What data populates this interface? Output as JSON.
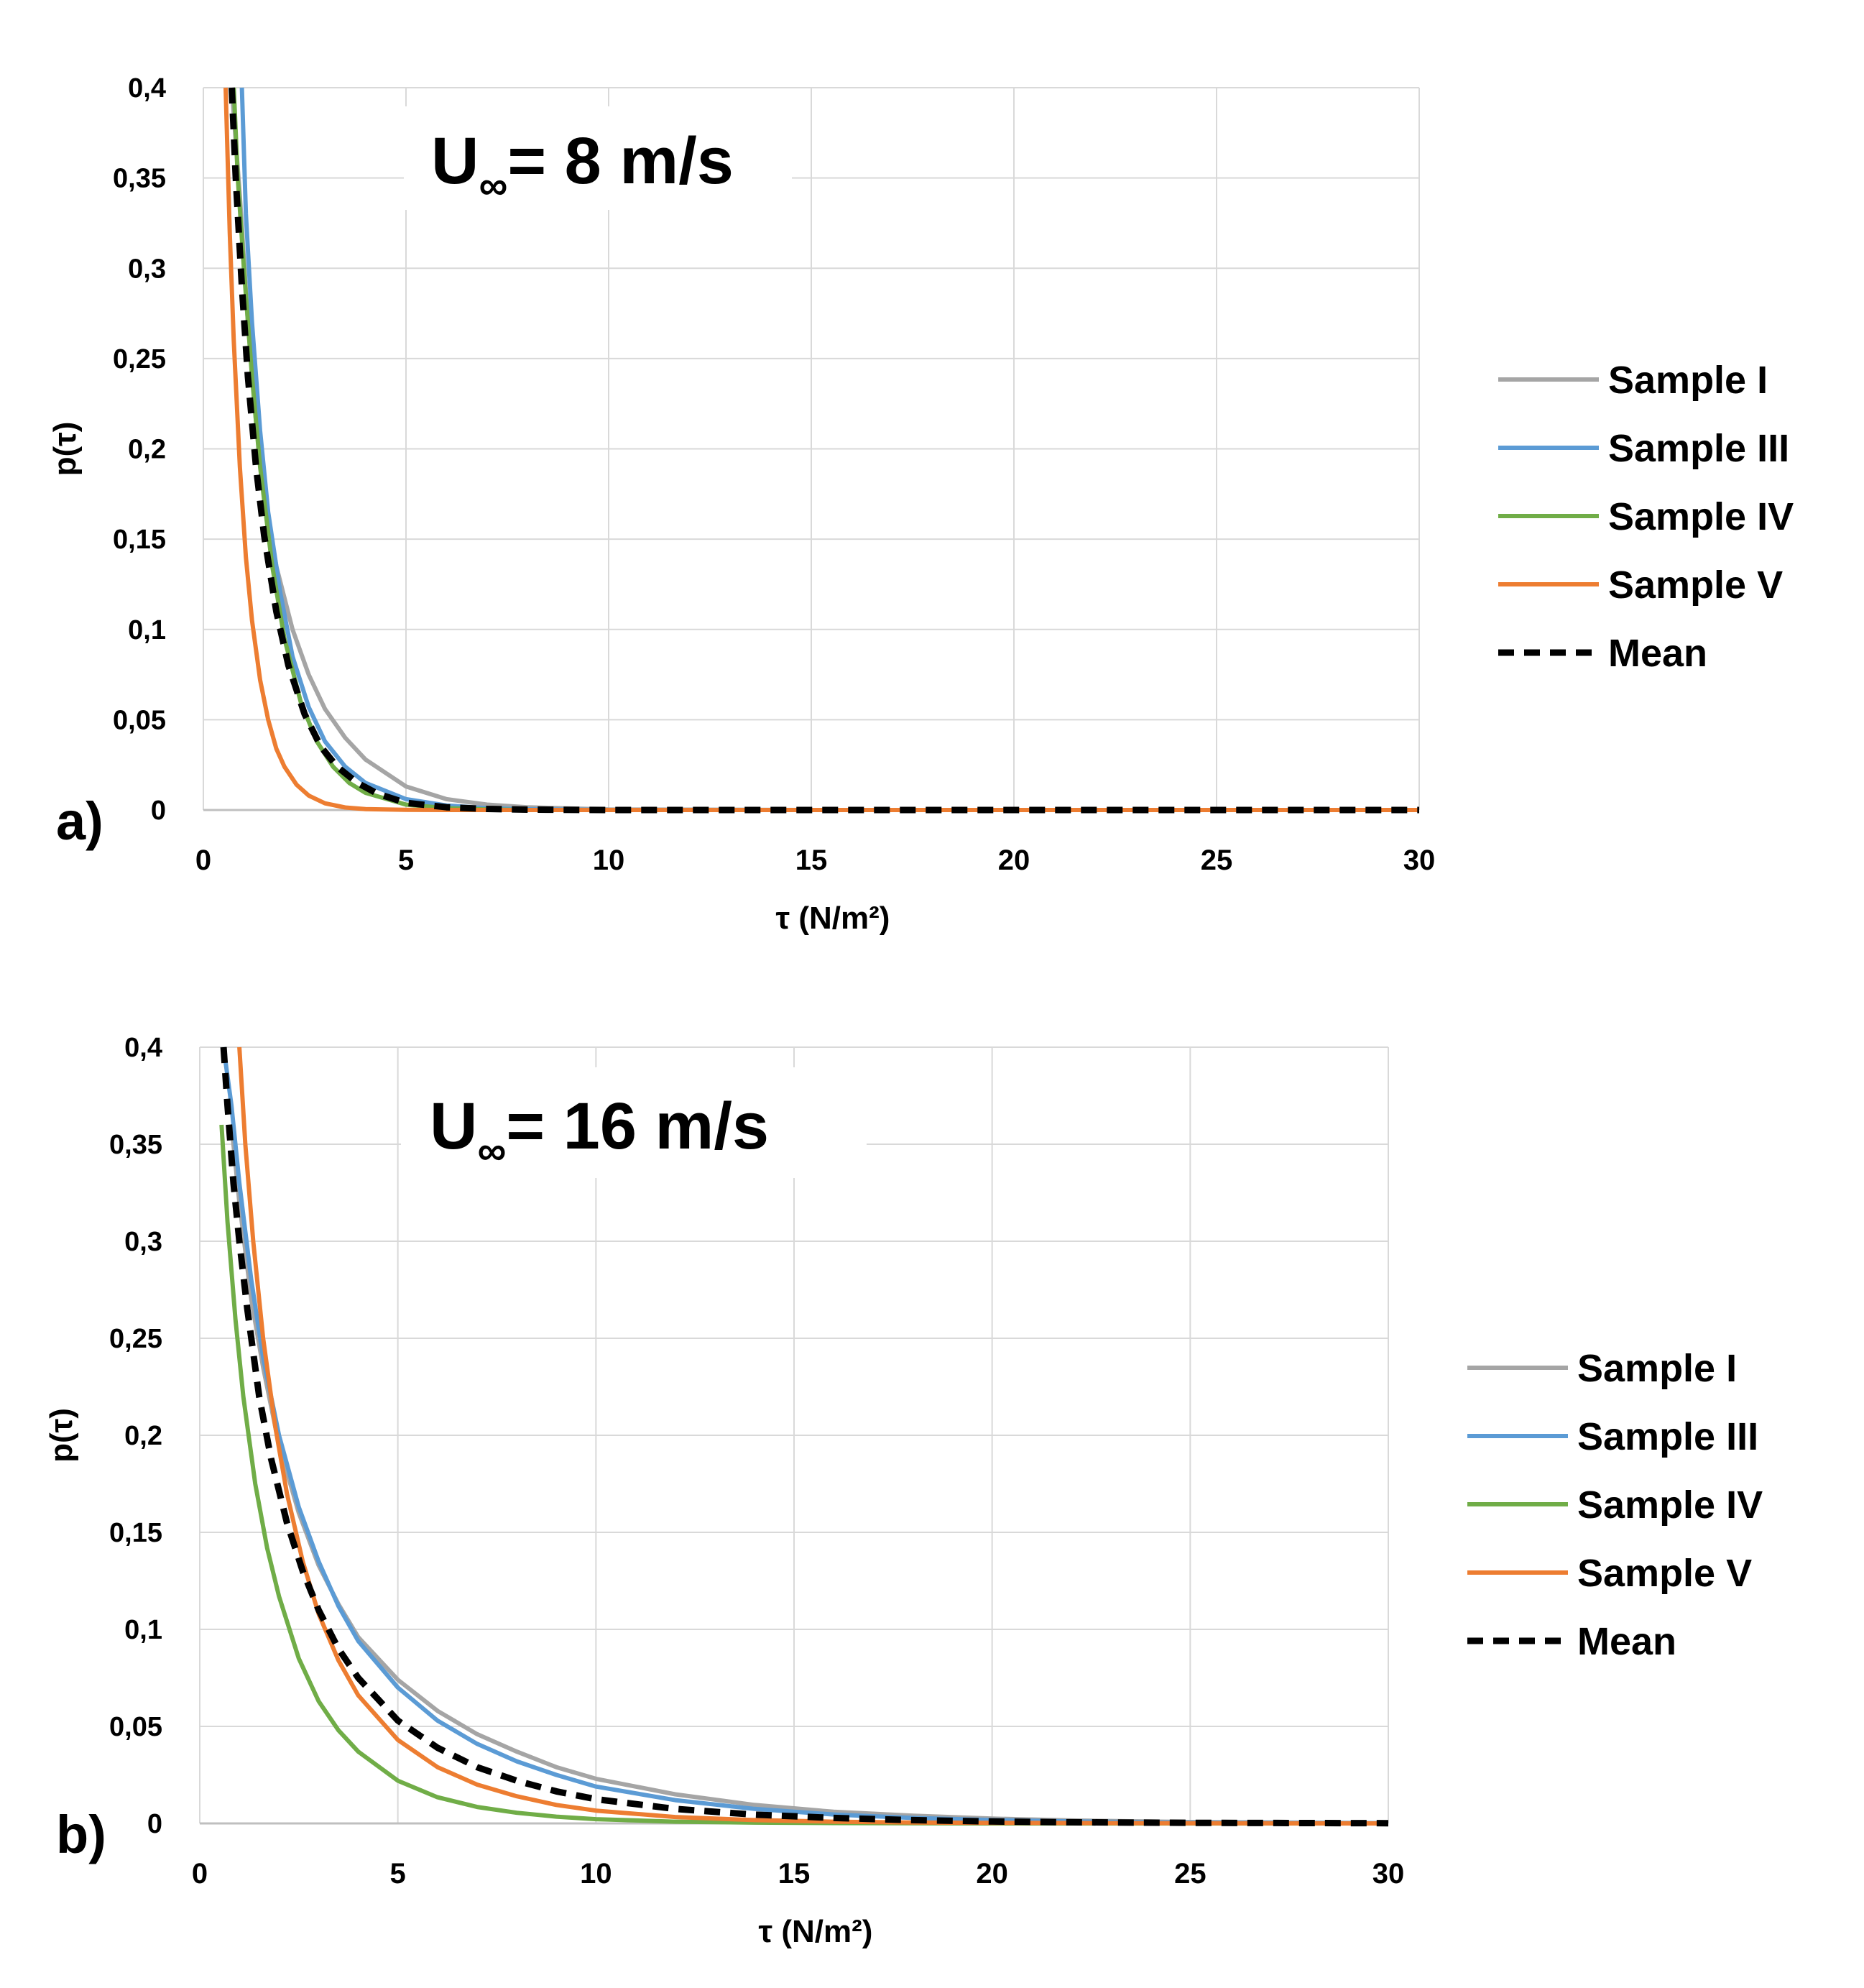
{
  "chart_data": [
    {
      "type": "line",
      "panel_label": "a)",
      "annotation": {
        "symbol": "U",
        "subscript": "∞",
        "text": "= 8 m/s"
      },
      "xlabel": "τ (N/m²)",
      "ylabel": "p(τ)",
      "xlim": [
        0,
        30
      ],
      "ylim": [
        0,
        0.4
      ],
      "xticks": [
        0,
        5,
        10,
        15,
        20,
        25,
        30
      ],
      "yticks": [
        0,
        0.05,
        0.1,
        0.15,
        0.2,
        0.25,
        0.3,
        0.35,
        0.4
      ],
      "xtick_labels": [
        "0",
        "5",
        "10",
        "15",
        "20",
        "25",
        "30"
      ],
      "ytick_labels": [
        "0",
        "0,05",
        "0,1",
        "0,15",
        "0,2",
        "0,25",
        "0,3",
        "0,35",
        "0,4"
      ],
      "grid": true,
      "legend_position": "right",
      "series": [
        {
          "name": "Sample I",
          "color": "#a5a5a5",
          "dash": "solid",
          "x": [
            0.7,
            0.9,
            1.1,
            1.3,
            1.5,
            1.8,
            2.2,
            2.6,
            3.0,
            3.5,
            4.0,
            5.0,
            6.0,
            7.0,
            8.0,
            10.0,
            15.0,
            20.0,
            30.0
          ],
          "y": [
            0.4,
            0.34,
            0.27,
            0.215,
            0.175,
            0.135,
            0.1,
            0.075,
            0.056,
            0.04,
            0.028,
            0.013,
            0.006,
            0.003,
            0.0015,
            0.0003,
            0,
            0,
            0
          ]
        },
        {
          "name": "Sample III",
          "color": "#5b9bd5",
          "dash": "solid",
          "x": [
            0.95,
            1.05,
            1.2,
            1.4,
            1.6,
            1.9,
            2.2,
            2.6,
            3.0,
            3.5,
            4.0,
            5.0,
            6.0,
            7.0,
            8.0,
            10.0,
            15.0,
            20.0,
            30.0
          ],
          "y": [
            0.4,
            0.33,
            0.27,
            0.21,
            0.165,
            0.12,
            0.085,
            0.057,
            0.038,
            0.024,
            0.015,
            0.006,
            0.0025,
            0.001,
            0.0004,
            0,
            0,
            0,
            0
          ]
        },
        {
          "name": "Sample IV",
          "color": "#70ad47",
          "dash": "solid",
          "x": [
            0.75,
            0.85,
            1.0,
            1.2,
            1.4,
            1.7,
            2.0,
            2.4,
            2.8,
            3.2,
            3.6,
            4.0,
            5.0,
            6.0,
            7.0,
            8.0,
            10.0,
            15.0,
            20.0,
            30.0
          ],
          "y": [
            0.4,
            0.35,
            0.3,
            0.24,
            0.19,
            0.135,
            0.095,
            0.06,
            0.038,
            0.024,
            0.015,
            0.0095,
            0.003,
            0.001,
            0.0003,
            0,
            0,
            0,
            0,
            0
          ]
        },
        {
          "name": "Sample V",
          "color": "#ed7d31",
          "dash": "solid",
          "x": [
            0.55,
            0.65,
            0.75,
            0.9,
            1.05,
            1.2,
            1.4,
            1.6,
            1.8,
            2.0,
            2.3,
            2.6,
            3.0,
            3.5,
            4.0,
            5.0,
            6.0,
            8.0,
            10.0,
            15.0,
            20.0,
            30.0
          ],
          "y": [
            0.4,
            0.32,
            0.26,
            0.19,
            0.14,
            0.105,
            0.072,
            0.05,
            0.034,
            0.024,
            0.014,
            0.008,
            0.0037,
            0.0014,
            0.0005,
            0.0001,
            0,
            0,
            0,
            0,
            0,
            0
          ]
        },
        {
          "name": "Mean",
          "color": "#000000",
          "dash": "dashed",
          "x": [
            0.7,
            0.8,
            0.95,
            1.1,
            1.3,
            1.5,
            1.8,
            2.1,
            2.5,
            2.9,
            3.3,
            3.8,
            4.3,
            5.0,
            6.0,
            7.0,
            8.0,
            10.0,
            15.0,
            20.0,
            30.0
          ],
          "y": [
            0.4,
            0.35,
            0.29,
            0.24,
            0.19,
            0.152,
            0.11,
            0.08,
            0.053,
            0.035,
            0.024,
            0.015,
            0.009,
            0.004,
            0.0015,
            0.0006,
            0.0002,
            0,
            0,
            0,
            0
          ]
        }
      ]
    },
    {
      "type": "line",
      "panel_label": "b)",
      "annotation": {
        "symbol": "U",
        "subscript": "∞",
        "text": "= 16 m/s"
      },
      "xlabel": "τ (N/m²)",
      "ylabel": "p(τ)",
      "xlim": [
        0,
        30
      ],
      "ylim": [
        0,
        0.4
      ],
      "xticks": [
        0,
        5,
        10,
        15,
        20,
        25,
        30
      ],
      "yticks": [
        0,
        0.05,
        0.1,
        0.15,
        0.2,
        0.25,
        0.3,
        0.35,
        0.4
      ],
      "xtick_labels": [
        "0",
        "5",
        "10",
        "15",
        "20",
        "25",
        "30"
      ],
      "ytick_labels": [
        "0",
        "0,05",
        "0,1",
        "0,15",
        "0,2",
        "0,25",
        "0,3",
        "0,35",
        "0,4"
      ],
      "grid": true,
      "legend_position": "right",
      "series": [
        {
          "name": "Sample I",
          "color": "#a5a5a5",
          "dash": "solid",
          "x": [
            0.8,
            1.0,
            1.3,
            1.6,
            2.0,
            2.5,
            3.0,
            3.5,
            4.0,
            5.0,
            6.0,
            7.0,
            8.0,
            9.0,
            10.0,
            12.0,
            14.0,
            16.0,
            18.0,
            20.0,
            22.0,
            25.0,
            30.0
          ],
          "y": [
            0.36,
            0.32,
            0.27,
            0.235,
            0.195,
            0.16,
            0.133,
            0.113,
            0.096,
            0.074,
            0.058,
            0.046,
            0.037,
            0.029,
            0.023,
            0.015,
            0.0095,
            0.006,
            0.004,
            0.0025,
            0.0015,
            0.0007,
            0.0001
          ]
        },
        {
          "name": "Sample III",
          "color": "#5b9bd5",
          "dash": "solid",
          "x": [
            0.6,
            0.8,
            1.0,
            1.3,
            1.6,
            2.0,
            2.5,
            3.0,
            3.5,
            4.0,
            5.0,
            6.0,
            7.0,
            8.0,
            9.0,
            10.0,
            12.0,
            14.0,
            16.0,
            18.0,
            20.0,
            22.0,
            25.0,
            30.0
          ],
          "y": [
            0.4,
            0.37,
            0.33,
            0.28,
            0.24,
            0.2,
            0.163,
            0.135,
            0.112,
            0.094,
            0.07,
            0.053,
            0.041,
            0.032,
            0.025,
            0.019,
            0.012,
            0.0075,
            0.0046,
            0.0028,
            0.0017,
            0.001,
            0.0004,
            0.0001
          ]
        },
        {
          "name": "Sample IV",
          "color": "#70ad47",
          "dash": "solid",
          "x": [
            0.55,
            0.7,
            0.9,
            1.1,
            1.4,
            1.7,
            2.0,
            2.5,
            3.0,
            3.5,
            4.0,
            5.0,
            6.0,
            7.0,
            8.0,
            9.0,
            10.0,
            12.0,
            14.0,
            16.0,
            20.0,
            30.0
          ],
          "y": [
            0.36,
            0.31,
            0.26,
            0.22,
            0.175,
            0.142,
            0.117,
            0.085,
            0.063,
            0.048,
            0.037,
            0.022,
            0.0135,
            0.0085,
            0.0055,
            0.0035,
            0.0022,
            0.0009,
            0.0004,
            0.0002,
            0,
            0
          ]
        },
        {
          "name": "Sample V",
          "color": "#ed7d31",
          "dash": "solid",
          "x": [
            1.0,
            1.15,
            1.35,
            1.6,
            1.9,
            2.2,
            2.6,
            3.0,
            3.5,
            4.0,
            5.0,
            6.0,
            7.0,
            8.0,
            9.0,
            10.0,
            12.0,
            14.0,
            16.0,
            18.0,
            20.0,
            25.0,
            30.0
          ],
          "y": [
            0.4,
            0.35,
            0.3,
            0.25,
            0.205,
            0.17,
            0.135,
            0.108,
            0.084,
            0.066,
            0.043,
            0.029,
            0.02,
            0.014,
            0.0095,
            0.0066,
            0.0033,
            0.0017,
            0.0009,
            0.0005,
            0.0003,
            0.0001,
            0
          ]
        },
        {
          "name": "Mean",
          "color": "#000000",
          "dash": "dashed",
          "x": [
            0.6,
            0.7,
            0.85,
            1.0,
            1.2,
            1.5,
            1.8,
            2.2,
            2.6,
            3.0,
            3.5,
            4.0,
            5.0,
            6.0,
            7.0,
            8.0,
            9.0,
            10.0,
            12.0,
            14.0,
            16.0,
            18.0,
            20.0,
            22.0,
            25.0,
            30.0
          ],
          "y": [
            0.4,
            0.37,
            0.33,
            0.3,
            0.265,
            0.22,
            0.188,
            0.155,
            0.13,
            0.11,
            0.09,
            0.075,
            0.053,
            0.039,
            0.029,
            0.022,
            0.0165,
            0.0125,
            0.0075,
            0.0045,
            0.0028,
            0.0017,
            0.001,
            0.0006,
            0.0003,
            0.0001
          ]
        }
      ]
    }
  ]
}
